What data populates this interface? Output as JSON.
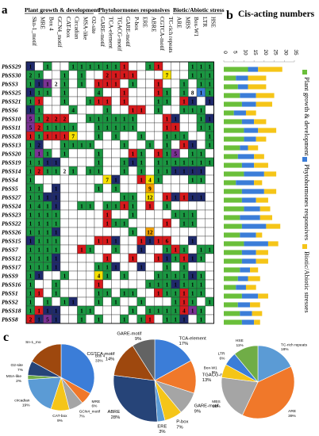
{
  "panel_letters": {
    "a": "a",
    "b": "b",
    "c": "c"
  },
  "heatmap": {
    "groups": [
      "Plant growth & development",
      "Phytohormones responsives",
      "Biotic/Abiotic stress"
    ],
    "columns": [
      "Skn-1_motif",
      "MRE",
      "Box 4",
      "GCN4_motif",
      "CAT-box",
      "Circadian",
      "MSA-like",
      "O2-site",
      "GARE-motif",
      "TCA-element",
      "TGACG-motif",
      "GARE-motif",
      "P-box",
      "ERE",
      "ABRE",
      "CGTCA-motif",
      "TC-rich repeats",
      "ARE",
      "MBS",
      "Box-W1",
      "LTR",
      "HSE"
    ],
    "colors": {
      "red": "#d7191c",
      "green": "#1a9641",
      "navy": "#1f2a6b",
      "purple": "#7b3294",
      "yellow": "#f6e000",
      "orange": "#f4a100",
      "blue": "#3b7dd8",
      "empty": "#ffffff"
    },
    "rows": [
      {
        "label": "PbSS29",
        "cells": "N.G..GGGGGGR..GR...GGG",
        "nums": {}
      },
      {
        "label": "PbSS30",
        "cells": "GG..G.G..RRRR...Y..GGG",
        "nums": {
          "0": "2",
          "9": "2",
          "16": "7"
        }
      },
      {
        "label": "PbSS3",
        "cells": "GNP.G.G.RRR.G..R..G.GG",
        "nums": {
          "3": "2"
        }
      },
      {
        "label": "PbSS25",
        "cells": "NGG.G...G..R...RG.G.BG",
        "nums": {
          "8": "4",
          "19": "8"
        }
      },
      {
        "label": "PbSS21",
        "cells": "GR..G..GRR.R...GG.RN.N",
        "nums": {
          "0": "1",
          "1": "1"
        }
      },
      {
        "label": "PbSS6",
        "cells": "NG...G...G..RR.G..GGG.",
        "nums": {
          "5": "4"
        }
      },
      {
        "label": "PbSS10",
        "cells": "PGRRR..GGGGGG...RN..GN",
        "nums": {
          "0": "5",
          "2": "2",
          "3": "2",
          "4": "2"
        }
      },
      {
        "label": "PbSS11",
        "cells": "PRGGGG..GGGGG...RR..GG",
        "nums": {
          "0": "5",
          "1": "2"
        }
      },
      {
        "label": "PbSS28",
        "cells": "RGRRRY..G.G..G..GGG..G",
        "nums": {
          "5": "7"
        }
      },
      {
        "label": "PbSS13",
        "cells": "GN..GGGG...G..G.G.RN.G",
        "nums": {
          "1": "2"
        }
      },
      {
        "label": "PbSS20",
        "cells": "GPG.G...G...RG.RGP.GG.",
        "nums": {
          "17": "5"
        }
      },
      {
        "label": "PbSS19",
        "cells": "GGNN....G..GNG.GGGGGGG",
        "nums": {}
      },
      {
        "label": "PbSS14",
        "cells": "GRGG.G.GG..G.G.GGNNNN.",
        "nums": {
          "1": "2",
          "4": "2"
        }
      },
      {
        "label": "PbSS4",
        "cells": "G........YN..RYG...GG.",
        "nums": {
          "9": "7",
          "14": "4"
        }
      },
      {
        "label": "PbSS5",
        "cells": "GG.N....G.G...O.......",
        "nums": {
          "14": "9"
        }
      },
      {
        "label": "PbSS27",
        "cells": "GGNN.......GG.Y.RNRNN.",
        "nums": {
          "14": "12"
        }
      },
      {
        "label": "PbSS24",
        "cells": "GGGN..GG.GGRG.R.G.....",
        "nums": {
          "1": "4"
        }
      },
      {
        "label": "PbSS23",
        "cells": "GGGG.....R..G....GGG..",
        "nums": {}
      },
      {
        "label": "PbSS22",
        "cells": "GGGG.....RGG....R.GG..",
        "nums": {}
      },
      {
        "label": "PbSS26",
        "cells": "GGGN........G.O.......",
        "nums": {
          "14": "12"
        }
      },
      {
        "label": "PbSS15",
        "cells": "NGGG....RRN..RNRR..N..",
        "nums": {
          "16": "6"
        }
      },
      {
        "label": "PbSS7",
        "cells": "GGGG..RG..G..N..GRG.GG",
        "nums": {}
      },
      {
        "label": "PbSS12",
        "cells": "GGGN.....R..R..RNGRNG.",
        "nums": {}
      },
      {
        "label": "PbSS17",
        "cells": "GGGN....GGN..N..G.G...",
        "nums": {}
      },
      {
        "label": "PbSS9",
        "cells": "GN..G...YG.G...GGGGNG.",
        "nums": {
          "8": "4"
        }
      },
      {
        "label": "PbSS16",
        "cells": "G..G....R.....GGGNGGG.",
        "nums": {}
      },
      {
        "label": "PbSS1",
        "cells": "GR.G....GG.GG..RGGRGG.",
        "nums": {}
      },
      {
        "label": "PbSS2",
        "cells": "G.G.GN..G.G..G...GRG.G",
        "nums": {}
      },
      {
        "label": "PbSS18",
        "cells": "GRNN..GG....G.GGGGRPG.",
        "nums": {
          "18": "4"
        }
      },
      {
        "label": "PbSS8",
        "cells": "RNPN..G.G..G.GR.GGN.G.",
        "nums": {
          "0": "2",
          "2": "5"
        }
      }
    ]
  },
  "chart_data": [
    {
      "type": "bar",
      "title": "Cis-acting numbers",
      "xlim": [
        0,
        35
      ],
      "ticks": [
        "0",
        "5",
        "10",
        "15",
        "20",
        "25",
        "30",
        "35"
      ],
      "legend": [
        "Plant growth & development",
        "Phytohormones responsives",
        "Biotic/Abiotic stresses"
      ],
      "categories": [
        "PbSS29",
        "PbSS30",
        "PbSS3",
        "PbSS25",
        "PbSS21",
        "PbSS6",
        "PbSS10",
        "PbSS11",
        "PbSS28",
        "PbSS13",
        "PbSS20",
        "PbSS19",
        "PbSS14",
        "PbSS4",
        "PbSS5",
        "PbSS27",
        "PbSS24",
        "PbSS23",
        "PbSS22",
        "PbSS26",
        "PbSS15",
        "PbSS7",
        "PbSS12",
        "PbSS17",
        "PbSS9",
        "PbSS16",
        "PbSS1",
        "PbSS2",
        "PbSS18",
        "PbSS8"
      ],
      "series": [
        {
          "name": "Plant growth & development",
          "color": "#6abf3a",
          "values": [
            12,
            6,
            7,
            8,
            9,
            5,
            9,
            10,
            10,
            8,
            7,
            9,
            10,
            6,
            9,
            9,
            10,
            8,
            9,
            8,
            10,
            9,
            9,
            8,
            7,
            6,
            9,
            7,
            8,
            9
          ]
        },
        {
          "name": "Phytohormones responsives",
          "color": "#3b7dd8",
          "values": [
            5,
            6,
            5,
            8,
            7,
            6,
            6,
            7,
            6,
            4,
            8,
            6,
            10,
            9,
            11,
            7,
            8,
            10,
            12,
            8,
            12,
            7,
            7,
            5,
            5,
            5,
            8,
            6,
            6,
            6
          ]
        },
        {
          "name": "Biotic/Abiotic stresses",
          "color": "#f5c518",
          "values": [
            12,
            9,
            9,
            9,
            8,
            5,
            6,
            9,
            5,
            5,
            5,
            7,
            6,
            4,
            6,
            6,
            5,
            6,
            7,
            3,
            5,
            6,
            6,
            4,
            6,
            5,
            5,
            5,
            5,
            3
          ]
        }
      ]
    },
    {
      "type": "pie",
      "slices": [
        {
          "label": "Box 4",
          "value": 33,
          "color": "#3b7dd8"
        },
        {
          "label": "MRE",
          "value": 6,
          "color": "#f0782a"
        },
        {
          "label": "GCN4_motif",
          "value": 7,
          "color": "#a5a5a5"
        },
        {
          "label": "CAT-box",
          "value": 9,
          "color": "#f5c518"
        },
        {
          "label": "circadian",
          "value": 19,
          "color": "#5b9bd5"
        },
        {
          "label": "MSA-like",
          "value": 2,
          "color": "#70ad47"
        },
        {
          "label": "O2-site",
          "value": 7,
          "color": "#264478"
        },
        {
          "label": "Skn-1_motif",
          "value": 17,
          "color": "#9e480e"
        }
      ],
      "labels": [
        {
          "text": "Box 4",
          "pct": "33%"
        },
        {
          "text": "MRE",
          "pct": "6%"
        },
        {
          "text": "GCN4_motif",
          "pct": "7%"
        },
        {
          "text": "CAT-box",
          "pct": "9%"
        },
        {
          "text": "circadian",
          "pct": "19%"
        },
        {
          "text": "MSA-like",
          "pct": "2%"
        },
        {
          "text": "O2-site",
          "pct": "7%"
        },
        {
          "text": "Sn-1_mo",
          "pct": ""
        }
      ]
    },
    {
      "type": "pie",
      "slices": [
        {
          "label": "TCA-element",
          "value": 17,
          "color": "#3b7dd8"
        },
        {
          "label": "TGACG-motif",
          "value": 13,
          "color": "#f0782a"
        },
        {
          "label": "GARE-motif",
          "value": 9,
          "color": "#a5a5a5"
        },
        {
          "label": "P-box",
          "value": 7,
          "color": "#f5c518"
        },
        {
          "label": "ERE",
          "value": 3,
          "color": "#5b9bd5"
        },
        {
          "label": "ABRE",
          "value": 28,
          "color": "#264478"
        },
        {
          "label": "CGTCA-motif",
          "value": 14,
          "color": "#9e480e"
        },
        {
          "label": "GARE-motif",
          "value": 9,
          "color": "#636363"
        }
      ],
      "labels": [
        {
          "text": "TCA-element",
          "pct": "17%"
        },
        {
          "text": "TGACG-motif",
          "pct": "13%"
        },
        {
          "text": "GARE-motif",
          "pct": "9%"
        },
        {
          "text": "P-box",
          "pct": "7%"
        },
        {
          "text": "ERE",
          "pct": "3%"
        },
        {
          "text": "ABRE",
          "pct": "28%"
        },
        {
          "text": "CGTCA-motif",
          "pct": "14%"
        },
        {
          "text": "GARE-motif",
          "pct": "9%"
        }
      ]
    },
    {
      "type": "pie",
      "slices": [
        {
          "label": "TC-rich repeats",
          "value": 18,
          "color": "#5b9bd5"
        },
        {
          "label": "ARE",
          "value": 39,
          "color": "#f0782a"
        },
        {
          "label": "MBS",
          "value": 20,
          "color": "#a5a5a5"
        },
        {
          "label": "Box-W1",
          "value": 6,
          "color": "#f5c518"
        },
        {
          "label": "LTR",
          "value": 6,
          "color": "#3b7dd8"
        },
        {
          "label": "HSE",
          "value": 11,
          "color": "#70ad47"
        }
      ],
      "labels": [
        {
          "text": "TC-rich repeats",
          "pct": "18%"
        },
        {
          "text": "ARE",
          "pct": "39%"
        },
        {
          "text": "MBS",
          "pct": "20%"
        },
        {
          "text": "Box-W1",
          "pct": "6%"
        },
        {
          "text": "LTR",
          "pct": "6%"
        },
        {
          "text": "HSE",
          "pct": "11%"
        }
      ]
    }
  ]
}
